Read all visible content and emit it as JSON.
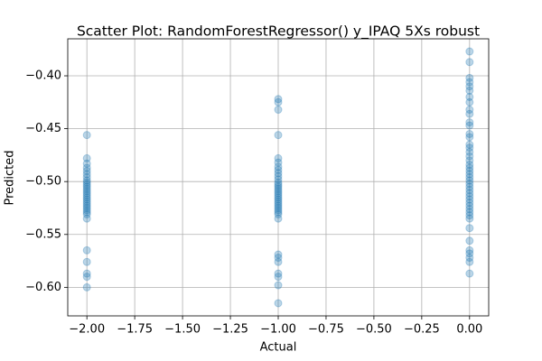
{
  "chart_data": {
    "type": "scatter",
    "title": "Scatter Plot: RandomForestRegressor() y_IPAQ 5Xs robust",
    "x_label": "Actual",
    "y_label": "Predicted",
    "color": "#1f77b4",
    "alpha": 0.3,
    "grid": true,
    "xlim": [
      -2.1,
      0.1
    ],
    "ylim": [
      -0.627,
      -0.365
    ],
    "xticks": [
      {
        "value": -2,
        "label": "−2.00"
      },
      {
        "value": -1.75,
        "label": "−1.75"
      },
      {
        "value": -1.5,
        "label": "−1.50"
      },
      {
        "value": -1.25,
        "label": "−1.25"
      },
      {
        "value": -1,
        "label": "−1.00"
      },
      {
        "value": -0.75,
        "label": "−0.75"
      },
      {
        "value": -0.5,
        "label": "−0.50"
      },
      {
        "value": -0.25,
        "label": "−0.25"
      },
      {
        "value": 0,
        "label": "0.00"
      }
    ],
    "yticks": [
      {
        "value": -0.6,
        "label": "−0.60"
      },
      {
        "value": -0.55,
        "label": "−0.55"
      },
      {
        "value": -0.5,
        "label": "−0.50"
      },
      {
        "value": -0.45,
        "label": "−0.45"
      },
      {
        "value": -0.4,
        "label": "−0.40"
      }
    ],
    "x": [
      -2,
      -2,
      -2,
      -2,
      -2,
      -2,
      -2,
      -2,
      -2,
      -2,
      -2,
      -2,
      -2,
      -2,
      -2,
      -2,
      -2,
      -2,
      -2,
      -2,
      -2,
      -2,
      -2,
      -2,
      -2,
      -2,
      -2,
      -2,
      -2,
      -2,
      -1,
      -1,
      -1,
      -1,
      -1,
      -1,
      -1,
      -1,
      -1,
      -1,
      -1,
      -1,
      -1,
      -1,
      -1,
      -1,
      -1,
      -1,
      -1,
      -1,
      -1,
      -1,
      -1,
      -1,
      -1,
      -1,
      -1,
      -1,
      -1,
      -1,
      -1,
      -1,
      -1,
      -1,
      -1,
      0,
      0,
      0,
      0,
      0,
      0,
      0,
      0,
      0,
      0,
      0,
      0,
      0,
      0,
      0,
      0,
      0,
      0,
      0,
      0,
      0,
      0,
      0,
      0,
      0,
      0,
      0,
      0,
      0,
      0,
      0,
      0,
      0,
      0,
      0,
      0,
      0,
      0,
      0,
      0,
      0,
      0,
      0,
      0
    ],
    "y": [
      -0.456,
      -0.478,
      -0.483,
      -0.487,
      -0.49,
      -0.493,
      -0.496,
      -0.499,
      -0.501,
      -0.503,
      -0.505,
      -0.507,
      -0.509,
      -0.511,
      -0.513,
      -0.515,
      -0.517,
      -0.519,
      -0.521,
      -0.523,
      -0.525,
      -0.527,
      -0.529,
      -0.531,
      -0.535,
      -0.565,
      -0.576,
      -0.587,
      -0.59,
      -0.6,
      -0.422,
      -0.425,
      -0.432,
      -0.456,
      -0.478,
      -0.482,
      -0.486,
      -0.489,
      -0.492,
      -0.495,
      -0.498,
      -0.501,
      -0.503,
      -0.505,
      -0.507,
      -0.509,
      -0.511,
      -0.513,
      -0.515,
      -0.517,
      -0.519,
      -0.521,
      -0.523,
      -0.525,
      -0.527,
      -0.529,
      -0.531,
      -0.535,
      -0.569,
      -0.572,
      -0.576,
      -0.587,
      -0.59,
      -0.598,
      -0.615,
      -0.377,
      -0.387,
      -0.402,
      -0.406,
      -0.41,
      -0.414,
      -0.42,
      -0.425,
      -0.432,
      -0.436,
      -0.444,
      -0.447,
      -0.455,
      -0.458,
      -0.465,
      -0.468,
      -0.472,
      -0.476,
      -0.48,
      -0.484,
      -0.487,
      -0.49,
      -0.493,
      -0.496,
      -0.499,
      -0.502,
      -0.505,
      -0.508,
      -0.511,
      -0.514,
      -0.517,
      -0.52,
      -0.523,
      -0.526,
      -0.529,
      -0.532,
      -0.535,
      -0.544,
      -0.556,
      -0.565,
      -0.568,
      -0.572,
      -0.576,
      -0.587
    ]
  }
}
